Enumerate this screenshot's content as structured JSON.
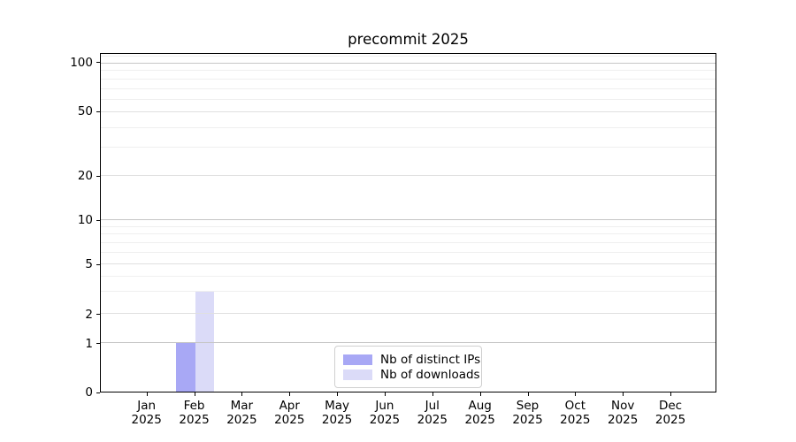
{
  "chart_data": {
    "type": "bar",
    "title": "precommit 2025",
    "xlabel": "",
    "ylabel": "",
    "year": "2025",
    "months": [
      "Jan",
      "Feb",
      "Mar",
      "Apr",
      "May",
      "Jun",
      "Jul",
      "Aug",
      "Sep",
      "Oct",
      "Nov",
      "Dec"
    ],
    "series": [
      {
        "name": "Nb of distinct IPs",
        "color": "#a8a8f5",
        "values": [
          0,
          1,
          0,
          0,
          0,
          0,
          0,
          0,
          0,
          0,
          0,
          0
        ]
      },
      {
        "name": "Nb of downloads",
        "color": "#dbdbf8",
        "values": [
          0,
          3,
          0,
          0,
          0,
          0,
          0,
          0,
          0,
          0,
          0,
          0
        ]
      }
    ],
    "yticks_major": [
      0,
      1,
      2,
      5,
      10,
      20,
      50,
      100
    ],
    "yticks_minor": [
      3,
      4,
      6,
      7,
      8,
      9,
      30,
      40,
      60,
      70,
      80,
      90,
      110
    ],
    "yticks_decade": [
      1,
      10,
      100
    ],
    "ylim": [
      0,
      115
    ],
    "scale": "symlog",
    "grid": "horizontal major+minor",
    "legend_position": "lower center inside",
    "tick_fractions": {
      "0": 0,
      "1": 0.1445,
      "2": 0.2292,
      "3": 0.2951,
      "4": 0.3414,
      "5": 0.3776,
      "6": 0.4117,
      "7": 0.4409,
      "8": 0.4659,
      "9": 0.488,
      "10": 0.5078,
      "20": 0.638,
      "30": 0.7216,
      "40": 0.7813,
      "50": 0.8273,
      "60": 0.8638,
      "70": 0.8964,
      "80": 0.9245,
      "90": 0.9492,
      "100": 0.9714,
      "110": 0.9914
    }
  }
}
